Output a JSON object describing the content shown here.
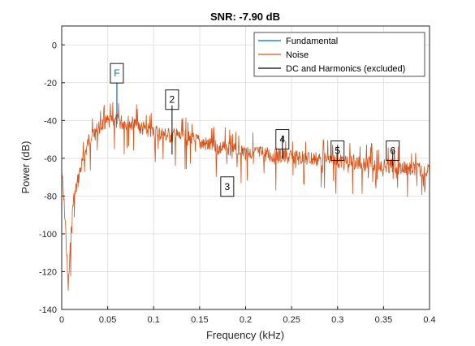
{
  "chart_data": {
    "type": "line",
    "title": "SNR:  -7.90 dB",
    "xlabel": "Frequency (kHz)",
    "ylabel": "Power (dB)",
    "xlim": [
      0,
      0.4
    ],
    "ylim": [
      -140,
      10
    ],
    "grid": true,
    "legend_position": "top-right",
    "xticks": [
      {
        "value": 0,
        "label": "0"
      },
      {
        "value": 0.05,
        "label": "0.05"
      },
      {
        "value": 0.1,
        "label": "0.1"
      },
      {
        "value": 0.15,
        "label": "0.15"
      },
      {
        "value": 0.2,
        "label": "0.2"
      },
      {
        "value": 0.25,
        "label": "0.25"
      },
      {
        "value": 0.3,
        "label": "0.3"
      },
      {
        "value": 0.35,
        "label": "0.35"
      },
      {
        "value": 0.4,
        "label": "0.4"
      }
    ],
    "yticks": [
      {
        "value": 0,
        "label": "0"
      },
      {
        "value": -20,
        "label": "-20"
      },
      {
        "value": -40,
        "label": "-40"
      },
      {
        "value": -60,
        "label": "-60"
      },
      {
        "value": -80,
        "label": "-80"
      },
      {
        "value": -100,
        "label": "-100"
      },
      {
        "value": -120,
        "label": "-120"
      },
      {
        "value": -140,
        "label": "-140"
      }
    ],
    "series": [
      {
        "name": "Fundamental",
        "color": "#0072BD",
        "stems": [
          {
            "x": 0.06,
            "y_top": -20,
            "y_bottom": -42
          }
        ]
      },
      {
        "name": "Noise",
        "color": "#D95319",
        "envelope": [
          {
            "x": 0.0,
            "y": -62
          },
          {
            "x": 0.004,
            "y": -90
          },
          {
            "x": 0.007,
            "y": -125
          },
          {
            "x": 0.012,
            "y": -80
          },
          {
            "x": 0.02,
            "y": -62
          },
          {
            "x": 0.03,
            "y": -45
          },
          {
            "x": 0.045,
            "y": -37
          },
          {
            "x": 0.06,
            "y": -36
          },
          {
            "x": 0.075,
            "y": -37
          },
          {
            "x": 0.09,
            "y": -40
          },
          {
            "x": 0.11,
            "y": -43
          },
          {
            "x": 0.13,
            "y": -44
          },
          {
            "x": 0.15,
            "y": -47
          },
          {
            "x": 0.17,
            "y": -50
          },
          {
            "x": 0.2,
            "y": -52
          },
          {
            "x": 0.23,
            "y": -54
          },
          {
            "x": 0.25,
            "y": -55
          },
          {
            "x": 0.28,
            "y": -56
          },
          {
            "x": 0.3,
            "y": -57
          },
          {
            "x": 0.33,
            "y": -58
          },
          {
            "x": 0.36,
            "y": -60
          },
          {
            "x": 0.38,
            "y": -61
          },
          {
            "x": 0.4,
            "y": -63
          }
        ],
        "noise_spread_db": 9
      },
      {
        "name": "DC and Harmonics (excluded)",
        "color": "#000000",
        "stems": [
          {
            "x": 0.12,
            "y_top": -32,
            "y_bottom": -58
          },
          {
            "x": 0.24,
            "y_top": -48,
            "y_bottom": -60
          },
          {
            "x": 0.3,
            "y_top": -53,
            "y_bottom": -62
          },
          {
            "x": 0.36,
            "y_top": -56,
            "y_bottom": -64
          }
        ]
      }
    ],
    "markers": [
      {
        "label": "F",
        "x": 0.06,
        "y": -15,
        "color": "#0072BD"
      },
      {
        "label": "2",
        "x": 0.12,
        "y": -29,
        "color": "#000000"
      },
      {
        "label": "3",
        "x": 0.18,
        "y": -75,
        "color": "#000000"
      },
      {
        "label": "4",
        "x": 0.24,
        "y": -50,
        "color": "#000000"
      },
      {
        "label": "5",
        "x": 0.3,
        "y": -56,
        "color": "#000000"
      },
      {
        "label": "6",
        "x": 0.36,
        "y": -56,
        "color": "#000000"
      }
    ]
  }
}
